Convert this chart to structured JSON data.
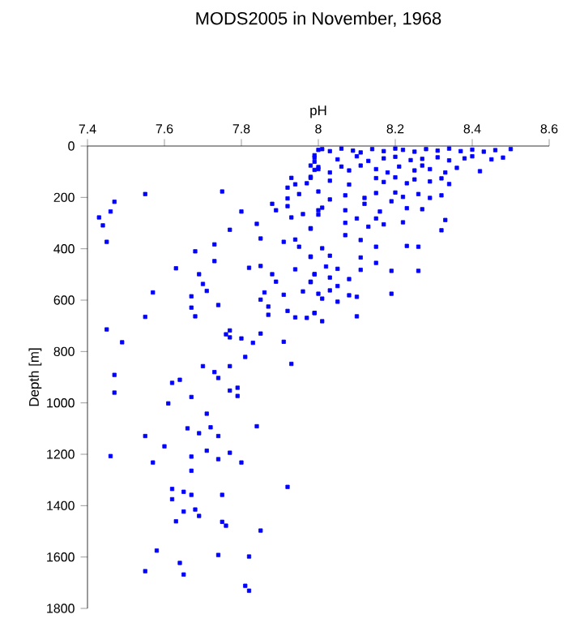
{
  "chart_data": {
    "type": "scatter",
    "title": "MODS2005 in November, 1968",
    "xlabel": "pH",
    "ylabel": "Depth [m]",
    "color": "#0000ff",
    "marker": "square",
    "grid": false,
    "xlim": [
      7.4,
      8.6
    ],
    "ylim": [
      1800,
      0
    ],
    "xticks": [
      7.4,
      7.6,
      7.8,
      8,
      8.2,
      8.4,
      8.6
    ],
    "yticks": [
      0,
      200,
      400,
      600,
      800,
      1000,
      1200,
      1400,
      1600,
      1800
    ],
    "x": [
      7.99,
      8.0,
      7.99,
      7.99,
      8.0,
      7.98,
      7.97,
      7.93,
      7.92,
      7.94,
      7.95,
      7.92,
      7.96,
      7.92,
      7.89,
      7.88,
      7.93,
      8.0,
      7.8,
      7.75,
      7.55,
      7.47,
      7.46,
      7.43,
      7.44,
      7.45,
      7.84,
      7.77,
      7.98,
      7.85,
      7.91,
      7.94,
      7.95,
      7.73,
      7.68,
      7.73,
      7.98,
      7.63,
      7.69,
      7.82,
      7.85,
      7.88,
      7.94,
      7.99,
      7.89,
      7.98,
      7.7,
      7.71,
      7.86,
      7.91,
      7.96,
      7.57,
      7.67,
      7.74,
      7.85,
      7.87,
      7.87,
      7.92,
      7.99,
      7.94,
      7.97,
      7.67,
      7.68,
      7.55,
      7.45,
      7.49,
      7.77,
      7.76,
      7.77,
      7.8,
      7.85,
      7.83,
      7.91,
      7.81,
      7.7,
      7.73,
      7.77,
      7.93,
      7.47,
      7.47,
      7.62,
      7.64,
      7.74,
      7.77,
      7.79,
      7.79,
      7.67,
      7.61,
      7.71,
      7.66,
      7.69,
      7.72,
      7.74,
      7.84,
      7.55,
      7.6,
      7.46,
      7.57,
      7.67,
      7.67,
      7.71,
      7.74,
      7.77,
      7.8,
      7.92,
      7.62,
      7.65,
      7.67,
      7.75,
      7.62,
      7.68,
      7.65,
      7.69,
      7.63,
      7.75,
      7.76,
      7.85,
      7.58,
      7.74,
      7.82,
      7.64,
      7.55,
      7.65,
      7.81,
      7.82,
      8.01,
      8.03,
      8.06,
      8.09,
      8.11,
      8.14,
      8.17,
      8.2,
      8.22,
      8.25,
      8.28,
      8.31,
      8.34,
      8.37,
      8.4,
      8.43,
      8.46,
      8.5,
      7.99,
      8.05,
      8.1,
      8.13,
      8.17,
      8.2,
      8.24,
      8.27,
      8.31,
      8.34,
      8.38,
      8.4,
      8.45,
      8.48,
      7.98,
      8.0,
      8.03,
      8.06,
      8.08,
      8.11,
      8.15,
      8.18,
      8.21,
      8.25,
      8.27,
      8.29,
      8.33,
      8.36,
      8.42,
      7.98,
      8.03,
      8.08,
      8.15,
      8.17,
      8.2,
      8.23,
      8.25,
      8.29,
      8.32,
      8.34,
      8.0,
      8.03,
      8.07,
      8.12,
      8.15,
      8.2,
      8.22,
      8.26,
      8.29,
      8.32,
      8.01,
      8.0,
      8.07,
      8.12,
      8.16,
      8.19,
      8.23,
      8.27,
      7.98,
      8.07,
      8.1,
      8.13,
      8.15,
      8.17,
      8.22,
      8.33,
      8.32,
      8.07,
      8.11,
      8.15,
      8.23,
      8.26,
      8.01,
      7.98,
      8.03,
      8.11,
      8.15,
      8.02,
      8.05,
      8.11,
      8.19,
      8.26,
      7.99,
      8.03,
      8.08,
      7.98,
      8.05,
      8.03,
      8.0,
      8.01,
      8.05,
      8.08,
      8.1,
      8.19,
      7.99,
      8.1,
      8.01
    ],
    "values": [
      36,
      15,
      61,
      93,
      82,
      124,
      145,
      124,
      162,
      149,
      187,
      204,
      265,
      234,
      250,
      225,
      278,
      250,
      255,
      177,
      187,
      217,
      255,
      278,
      309,
      373,
      303,
      326,
      322,
      360,
      373,
      364,
      392,
      383,
      410,
      448,
      432,
      476,
      499,
      474,
      467,
      499,
      480,
      499,
      528,
      528,
      537,
      564,
      570,
      579,
      566,
      570,
      585,
      619,
      598,
      625,
      657,
      642,
      650,
      667,
      669,
      629,
      663,
      665,
      714,
      764,
      718,
      733,
      745,
      749,
      730,
      766,
      762,
      821,
      857,
      880,
      857,
      848,
      891,
      960,
      922,
      910,
      903,
      952,
      941,
      973,
      977,
      1002,
      1042,
      1099,
      1118,
      1095,
      1129,
      1091,
      1129,
      1169,
      1207,
      1232,
      1209,
      1264,
      1186,
      1219,
      1194,
      1232,
      1327,
      1335,
      1346,
      1358,
      1358,
      1375,
      1415,
      1423,
      1440,
      1461,
      1463,
      1478,
      1497,
      1575,
      1592,
      1598,
      1623,
      1655,
      1668,
      1712,
      1731,
      12,
      20,
      10,
      18,
      25,
      12,
      20,
      10,
      15,
      22,
      12,
      18,
      10,
      20,
      14,
      22,
      16,
      12,
      45,
      52,
      40,
      58,
      48,
      42,
      55,
      50,
      44,
      56,
      48,
      40,
      52,
      45,
      76,
      90,
      103,
      80,
      95,
      76,
      90,
      103,
      80,
      95,
      76,
      90,
      103,
      85,
      98,
      120,
      135,
      150,
      125,
      140,
      122,
      145,
      130,
      138,
      126,
      148,
      177,
      208,
      192,
      202,
      183,
      181,
      198,
      187,
      202,
      192,
      240,
      267,
      250,
      225,
      255,
      215,
      242,
      246,
      320,
      299,
      282,
      314,
      282,
      305,
      297,
      288,
      328,
      347,
      366,
      392,
      389,
      392,
      398,
      430,
      427,
      434,
      455,
      469,
      478,
      482,
      486,
      486,
      499,
      512,
      518,
      530,
      545,
      562,
      575,
      594,
      606,
      581,
      587,
      575,
      650,
      663,
      682
    ]
  }
}
